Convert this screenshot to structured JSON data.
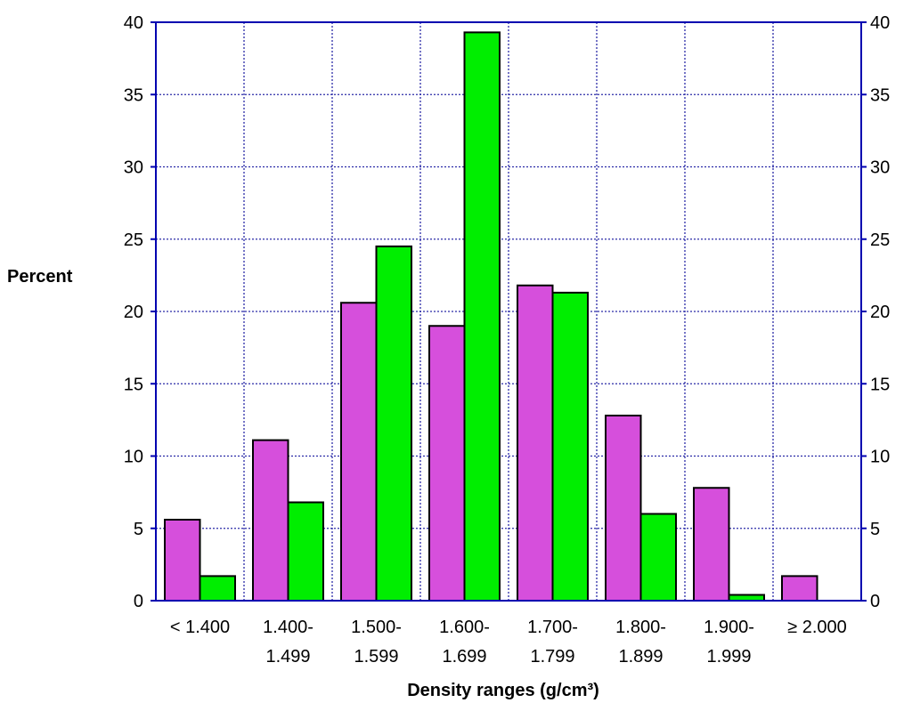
{
  "chart_data": {
    "type": "bar",
    "xlabel": "Density ranges (g/cm³)",
    "ylabel": "Percent",
    "ylim": [
      0,
      40
    ],
    "y_ticks": [
      0,
      5,
      10,
      15,
      20,
      25,
      30,
      35,
      40
    ],
    "grid": true,
    "right_axis": true,
    "categories": [
      [
        "< 1.400"
      ],
      [
        "1.400-",
        "1.499"
      ],
      [
        "1.500-",
        "1.599"
      ],
      [
        "1.600-",
        "1.699"
      ],
      [
        "1.700-",
        "1.799"
      ],
      [
        "1.800-",
        "1.899"
      ],
      [
        "1.900-",
        "1.999"
      ],
      [
        "≥ 2.000"
      ]
    ],
    "series": [
      {
        "color": "#d64fdc",
        "values": [
          5.6,
          11.1,
          20.6,
          19.0,
          21.8,
          12.8,
          7.8,
          1.7
        ]
      },
      {
        "color": "#00ee00",
        "values": [
          1.7,
          6.8,
          24.5,
          39.3,
          21.3,
          6.0,
          0.4,
          0
        ]
      }
    ],
    "colors": {
      "axis": "#0000b0",
      "grid": "#2b2ba8",
      "bar_outline": "#000000"
    }
  }
}
